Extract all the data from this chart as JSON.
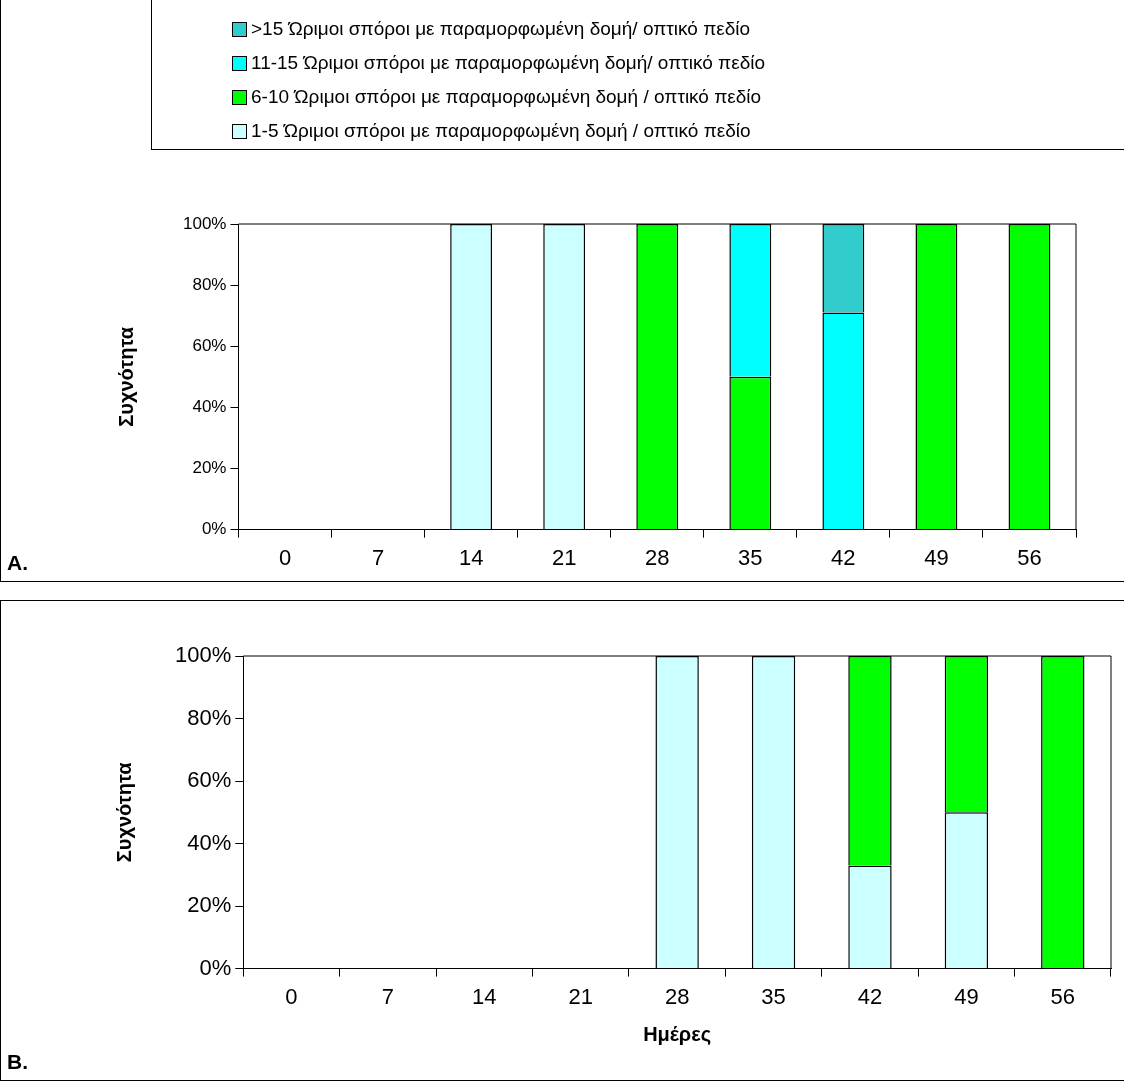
{
  "chart_data": [
    {
      "type": "bar",
      "stacked": true,
      "ylabel": "Συχνότητα",
      "annotations": [
        "A."
      ],
      "legend": "top",
      "categories": [
        "0",
        "7",
        "14",
        "21",
        "28",
        "35",
        "42",
        "49",
        "56"
      ],
      "ylim": [
        0,
        100
      ],
      "yticks": [
        {
          "value": 0,
          "label": "0%"
        },
        {
          "value": 20,
          "label": "20%"
        },
        {
          "value": 40,
          "label": "40%"
        },
        {
          "value": 60,
          "label": "60%"
        },
        {
          "value": 80,
          "label": "80%"
        },
        {
          "value": 100,
          "label": "100%"
        }
      ],
      "series": [
        {
          "name": "1-5 Ώριμοι σπόροι με παραμορφωμένη δομή / οπτικό πεδίο",
          "color": "#ccffff",
          "values": [
            0,
            0,
            100,
            100,
            0,
            0,
            0,
            0,
            0
          ]
        },
        {
          "name": "6-10 Ώριμοι σπόροι με παραμορφωμένη δομή / οπτικό πεδίο",
          "color": "#00ff00",
          "values": [
            0,
            0,
            0,
            0,
            100,
            50,
            0,
            100,
            100
          ]
        },
        {
          "name": "11-15 Ώριμοι σπόροι με παραμορφωμένη δομή/ οπτικό πεδίο",
          "color": "#00ffff",
          "values": [
            0,
            0,
            0,
            0,
            0,
            50,
            71,
            0,
            0
          ]
        },
        {
          "name": ">15 Ώριμοι σπόροι με παραμορφωμένη δομή/ οπτικό πεδίο",
          "color": "#33cccc",
          "values": [
            0,
            0,
            0,
            0,
            0,
            0,
            29,
            0,
            0
          ]
        }
      ]
    },
    {
      "type": "bar",
      "stacked": true,
      "ylabel": "Συχνότητα",
      "xlabel": "Ημέρες",
      "annotations": [
        "B."
      ],
      "categories": [
        "0",
        "7",
        "14",
        "21",
        "28",
        "35",
        "42",
        "49",
        "56"
      ],
      "ylim": [
        0,
        100
      ],
      "yticks": [
        {
          "value": 0,
          "label": "0%"
        },
        {
          "value": 20,
          "label": "20%"
        },
        {
          "value": 40,
          "label": "40%"
        },
        {
          "value": 60,
          "label": "60%"
        },
        {
          "value": 80,
          "label": "80%"
        },
        {
          "value": 100,
          "label": "100%"
        }
      ],
      "series": [
        {
          "color": "#ccffff",
          "values": [
            0,
            0,
            0,
            0,
            100,
            100,
            33,
            50,
            0
          ]
        },
        {
          "color": "#00ff00",
          "values": [
            0,
            0,
            0,
            0,
            0,
            0,
            67,
            50,
            100
          ]
        }
      ]
    }
  ]
}
